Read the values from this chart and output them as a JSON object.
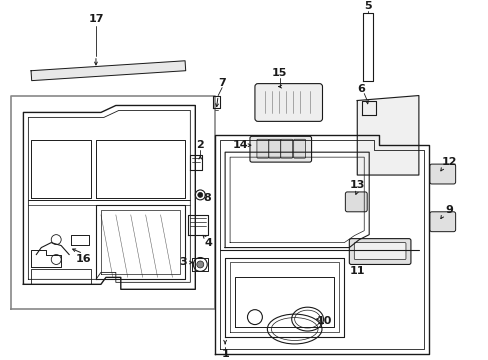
{
  "bg_color": "#ffffff",
  "lc": "#1a1a1a",
  "figsize": [
    4.89,
    3.6
  ],
  "dpi": 100,
  "xlim": [
    0,
    489
  ],
  "ylim": [
    0,
    360
  ]
}
